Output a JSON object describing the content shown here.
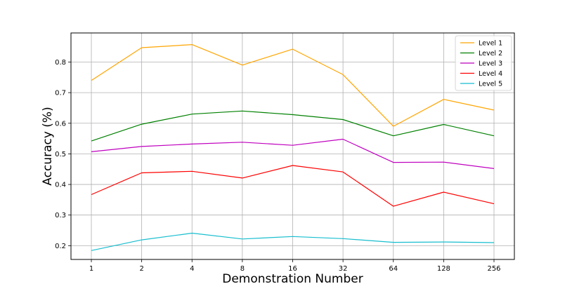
{
  "chart_data": {
    "type": "line",
    "title": "",
    "xlabel": "Demonstration Number",
    "ylabel": "Accuracy  (%)",
    "categories": [
      "1",
      "2",
      "4",
      "8",
      "16",
      "32",
      "64",
      "128",
      "256"
    ],
    "ylim": [
      0.155,
      0.895
    ],
    "yticks": [
      0.2,
      0.3,
      0.4,
      0.5,
      0.6,
      0.7,
      0.8
    ],
    "ytick_labels": [
      "0.2",
      "0.3",
      "0.4",
      "0.5",
      "0.6",
      "0.7",
      "0.8"
    ],
    "grid": true,
    "legend_position": "top-right",
    "series": [
      {
        "name": "Level 1",
        "color": "#FFA500",
        "values": [
          0.74,
          0.847,
          0.857,
          0.79,
          0.842,
          0.759,
          0.59,
          0.678,
          0.643
        ]
      },
      {
        "name": "Level 2",
        "color": "#008000",
        "values": [
          0.542,
          0.597,
          0.63,
          0.64,
          0.628,
          0.612,
          0.559,
          0.596,
          0.559
        ]
      },
      {
        "name": "Level 3",
        "color": "#BF00BF",
        "values": [
          0.507,
          0.524,
          0.532,
          0.538,
          0.528,
          0.548,
          0.472,
          0.473,
          0.452
        ]
      },
      {
        "name": "Level 4",
        "color": "#FF0000",
        "values": [
          0.367,
          0.438,
          0.443,
          0.421,
          0.462,
          0.441,
          0.329,
          0.375,
          0.337
        ]
      },
      {
        "name": "Level 5",
        "color": "#17BECF",
        "values": [
          0.184,
          0.219,
          0.241,
          0.222,
          0.23,
          0.223,
          0.211,
          0.212,
          0.21
        ]
      }
    ]
  }
}
